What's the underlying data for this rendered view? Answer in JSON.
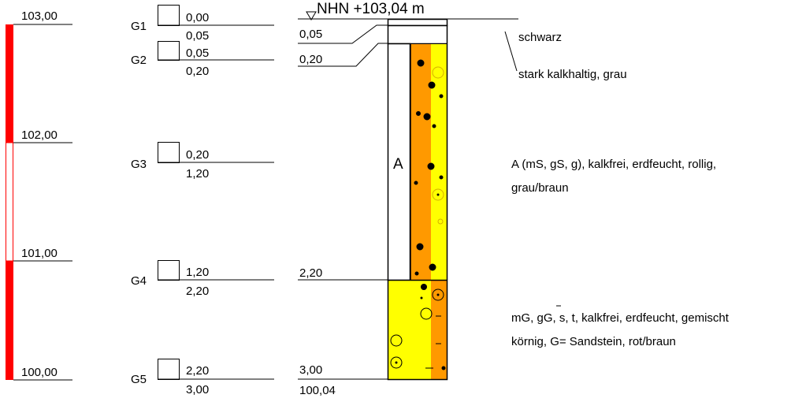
{
  "elevation_scale": {
    "labels": [
      "103,00",
      "102,00",
      "101,00",
      "100,00"
    ],
    "bar_color": "#ff0000"
  },
  "samples": [
    {
      "name": "G1",
      "top": "0,00",
      "bottom": "0,05"
    },
    {
      "name": "G2",
      "top": "0,05",
      "bottom": "0,20"
    },
    {
      "name": "G3",
      "top": "0,20",
      "bottom": "1,20"
    },
    {
      "name": "G4",
      "top": "1,20",
      "bottom": "2,20"
    },
    {
      "name": "G5",
      "top": "2,20",
      "bottom": "3,00"
    }
  ],
  "profile": {
    "header": "NHN +103,04 m",
    "depth_labels": [
      "0,05",
      "0,20",
      "2,20",
      "3,00"
    ],
    "base_elevation": "100,04",
    "fill_label": "A",
    "colors": {
      "orange": "#ff9900",
      "yellow": "#ffff00",
      "black": "#000000"
    }
  },
  "descriptions": {
    "layer1": "schwarz",
    "layer2": "stark kalkhaltig, grau",
    "layer3_line1": "A (mS, gS, g), kalkfrei, erdfeucht, rollig,",
    "layer3_line2": "grau/braun",
    "layer4_line1": "mG, gG, s, t, kalkfrei, erdfeucht, gemischt",
    "layer4_line2": "körnig, G= Sandstein, rot/braun"
  }
}
